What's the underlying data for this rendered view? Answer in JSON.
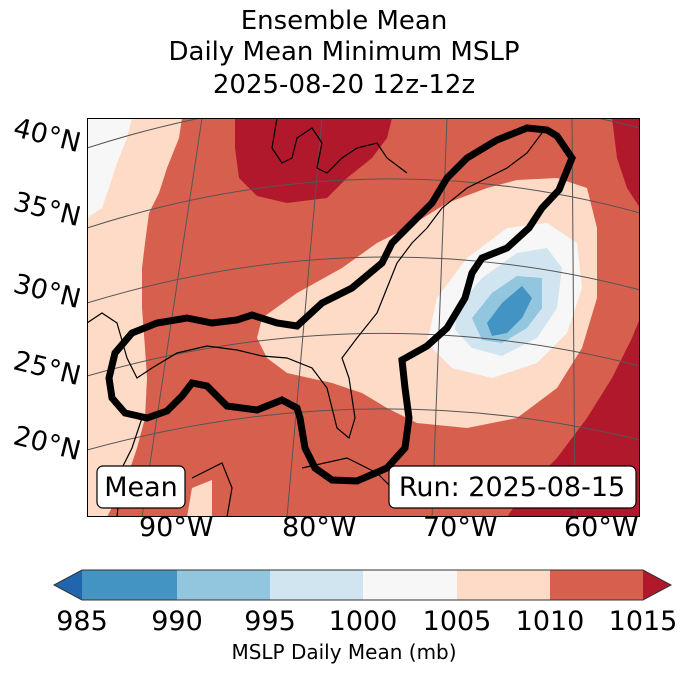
{
  "title": {
    "line1": "Ensemble Mean",
    "line2": "Daily Mean Minimum MSLP",
    "line3": "2025-08-20 12z-12z"
  },
  "map": {
    "lat_labels": [
      "40°N",
      "35°N",
      "30°N",
      "25°N",
      "20°N"
    ],
    "lon_labels": [
      "90°W",
      "80°W",
      "70°W",
      "60°W"
    ],
    "box_left": "Mean",
    "box_right": "Run: 2025-08-15",
    "low_center_color": "#4393c3",
    "contour_color": "#000000"
  },
  "colorbar": {
    "label": "MSLP Daily Mean (mb)",
    "ticks": [
      "985",
      "990",
      "995",
      "1000",
      "1005",
      "1010",
      "1015"
    ],
    "bins": [
      {
        "range": "<985",
        "color": "#2166ac"
      },
      {
        "range": "985-990",
        "color": "#4393c3"
      },
      {
        "range": "990-995",
        "color": "#92c5de"
      },
      {
        "range": "995-1000",
        "color": "#d1e5f0"
      },
      {
        "range": "1000-1005",
        "color": "#f7f7f7"
      },
      {
        "range": "1005-1010",
        "color": "#fddbc7"
      },
      {
        "range": "1010-1015",
        "color": "#d6604d"
      },
      {
        "range": ">1015",
        "color": "#b2182b"
      }
    ]
  }
}
